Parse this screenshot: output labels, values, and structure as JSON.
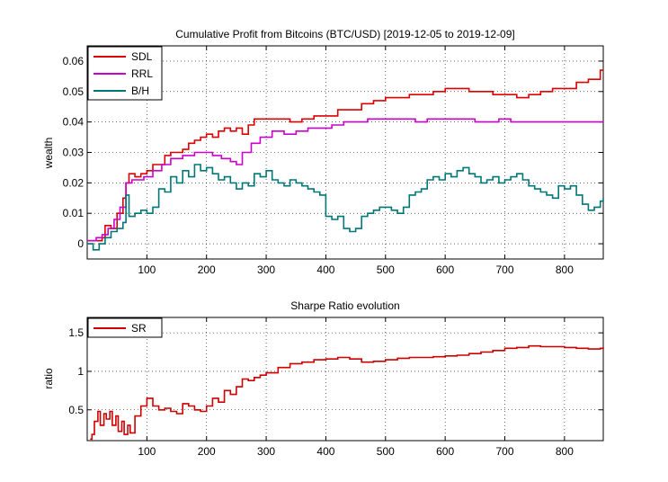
{
  "chart_data": [
    {
      "type": "line",
      "title": "Cumulative Profit from Bitcoins (BTC/USD) [2019-12-05 to 2019-12-09]",
      "xlabel": "",
      "ylabel": "wealth",
      "xlim": [
        0,
        865
      ],
      "ylim": [
        -0.005,
        0.065
      ],
      "xticks": [
        100,
        200,
        300,
        400,
        500,
        600,
        700,
        800
      ],
      "yticks": [
        0,
        0.01,
        0.02,
        0.03,
        0.04,
        0.05,
        0.06
      ],
      "ytick_labels": [
        "0",
        "0.01",
        "0.02",
        "0.03",
        "0.04",
        "0.05",
        "0.06"
      ],
      "grid": true,
      "legend": "top-left",
      "series": [
        {
          "name": "SDL",
          "color": "#dd0000",
          "x": [
            0,
            15,
            25,
            30,
            40,
            50,
            60,
            65,
            70,
            80,
            90,
            100,
            110,
            120,
            130,
            140,
            150,
            160,
            170,
            180,
            190,
            200,
            210,
            220,
            230,
            240,
            250,
            260,
            270,
            280,
            290,
            300,
            320,
            340,
            360,
            380,
            400,
            420,
            440,
            460,
            480,
            500,
            520,
            540,
            560,
            580,
            600,
            620,
            640,
            660,
            680,
            700,
            720,
            740,
            760,
            780,
            800,
            820,
            840,
            860,
            865
          ],
          "y": [
            0.001,
            0.001,
            0.002,
            0.006,
            0.005,
            0.01,
            0.015,
            0.02,
            0.023,
            0.022,
            0.023,
            0.024,
            0.026,
            0.026,
            0.029,
            0.03,
            0.03,
            0.031,
            0.033,
            0.034,
            0.035,
            0.036,
            0.035,
            0.037,
            0.038,
            0.037,
            0.038,
            0.036,
            0.039,
            0.041,
            0.041,
            0.041,
            0.041,
            0.04,
            0.041,
            0.042,
            0.042,
            0.044,
            0.044,
            0.046,
            0.047,
            0.048,
            0.048,
            0.049,
            0.049,
            0.05,
            0.051,
            0.051,
            0.05,
            0.05,
            0.049,
            0.049,
            0.048,
            0.049,
            0.05,
            0.051,
            0.051,
            0.053,
            0.054,
            0.057,
            0.057
          ]
        },
        {
          "name": "RRL",
          "color": "#cc00cc",
          "x": [
            0,
            15,
            25,
            35,
            45,
            55,
            65,
            75,
            85,
            95,
            110,
            125,
            140,
            160,
            180,
            195,
            210,
            225,
            240,
            250,
            260,
            275,
            290,
            310,
            330,
            350,
            370,
            390,
            410,
            430,
            450,
            470,
            490,
            510,
            530,
            550,
            570,
            590,
            610,
            630,
            650,
            670,
            690,
            710,
            730,
            750,
            770,
            790,
            810,
            830,
            850,
            865
          ],
          "y": [
            0.001,
            0.002,
            0.003,
            0.005,
            0.008,
            0.012,
            0.02,
            0.021,
            0.021,
            0.022,
            0.024,
            0.026,
            0.028,
            0.029,
            0.03,
            0.03,
            0.029,
            0.028,
            0.027,
            0.026,
            0.03,
            0.033,
            0.035,
            0.037,
            0.036,
            0.037,
            0.038,
            0.038,
            0.039,
            0.04,
            0.04,
            0.041,
            0.041,
            0.041,
            0.041,
            0.04,
            0.041,
            0.041,
            0.041,
            0.041,
            0.04,
            0.04,
            0.041,
            0.04,
            0.04,
            0.04,
            0.04,
            0.04,
            0.04,
            0.04,
            0.04,
            0.04
          ]
        },
        {
          "name": "B/H",
          "color": "#007777",
          "x": [
            0,
            10,
            20,
            30,
            40,
            50,
            60,
            65,
            70,
            80,
            90,
            100,
            110,
            120,
            130,
            140,
            150,
            160,
            170,
            180,
            190,
            200,
            210,
            220,
            230,
            240,
            250,
            260,
            270,
            280,
            290,
            300,
            310,
            320,
            330,
            340,
            350,
            360,
            370,
            380,
            390,
            400,
            410,
            420,
            430,
            440,
            450,
            460,
            470,
            480,
            490,
            500,
            510,
            520,
            530,
            540,
            550,
            560,
            570,
            580,
            590,
            600,
            610,
            620,
            630,
            640,
            650,
            660,
            670,
            680,
            690,
            700,
            710,
            720,
            730,
            740,
            750,
            760,
            770,
            780,
            790,
            800,
            810,
            820,
            830,
            840,
            850,
            860,
            865
          ],
          "y": [
            0.0,
            -0.002,
            0.0,
            0.002,
            0.004,
            0.005,
            0.007,
            0.016,
            0.009,
            0.01,
            0.011,
            0.01,
            0.012,
            0.018,
            0.017,
            0.022,
            0.02,
            0.024,
            0.022,
            0.026,
            0.024,
            0.025,
            0.023,
            0.021,
            0.022,
            0.02,
            0.018,
            0.02,
            0.019,
            0.023,
            0.022,
            0.024,
            0.021,
            0.02,
            0.019,
            0.021,
            0.02,
            0.019,
            0.018,
            0.017,
            0.016,
            0.009,
            0.008,
            0.009,
            0.005,
            0.004,
            0.005,
            0.009,
            0.01,
            0.011,
            0.012,
            0.012,
            0.011,
            0.01,
            0.012,
            0.016,
            0.017,
            0.018,
            0.021,
            0.022,
            0.021,
            0.023,
            0.022,
            0.024,
            0.025,
            0.023,
            0.022,
            0.02,
            0.021,
            0.022,
            0.02,
            0.021,
            0.022,
            0.023,
            0.021,
            0.019,
            0.018,
            0.017,
            0.016,
            0.015,
            0.019,
            0.018,
            0.019,
            0.016,
            0.013,
            0.011,
            0.012,
            0.014,
            0.015
          ]
        }
      ]
    },
    {
      "type": "line",
      "title": "Sharpe Ratio evolution",
      "xlabel": "",
      "ylabel": "ratio",
      "xlim": [
        0,
        865
      ],
      "ylim": [
        0.1,
        1.7
      ],
      "xticks": [
        100,
        200,
        300,
        400,
        500,
        600,
        700,
        800
      ],
      "yticks": [
        0.5,
        1,
        1.5
      ],
      "ytick_labels": [
        "0.5",
        "1",
        "1.5"
      ],
      "grid": true,
      "legend": "top-left",
      "series": [
        {
          "name": "SR",
          "color": "#cc0000",
          "x": [
            5,
            8,
            12,
            18,
            22,
            28,
            32,
            38,
            42,
            48,
            52,
            58,
            62,
            68,
            72,
            80,
            90,
            100,
            110,
            120,
            130,
            140,
            150,
            160,
            170,
            180,
            190,
            200,
            210,
            220,
            230,
            240,
            250,
            260,
            270,
            280,
            290,
            300,
            320,
            340,
            360,
            380,
            400,
            420,
            440,
            460,
            480,
            500,
            520,
            540,
            560,
            580,
            600,
            620,
            640,
            660,
            680,
            700,
            720,
            740,
            760,
            780,
            800,
            820,
            840,
            860,
            865
          ],
          "y": [
            0.12,
            0.18,
            0.35,
            0.48,
            0.3,
            0.45,
            0.38,
            0.48,
            0.3,
            0.42,
            0.22,
            0.35,
            0.18,
            0.3,
            0.2,
            0.42,
            0.55,
            0.65,
            0.55,
            0.5,
            0.52,
            0.48,
            0.45,
            0.58,
            0.55,
            0.5,
            0.48,
            0.55,
            0.65,
            0.6,
            0.75,
            0.7,
            0.8,
            0.9,
            0.88,
            0.92,
            0.95,
            0.98,
            1.05,
            1.1,
            1.12,
            1.15,
            1.16,
            1.18,
            1.16,
            1.12,
            1.13,
            1.15,
            1.17,
            1.18,
            1.18,
            1.19,
            1.2,
            1.21,
            1.23,
            1.25,
            1.27,
            1.3,
            1.31,
            1.33,
            1.32,
            1.32,
            1.31,
            1.3,
            1.29,
            1.3,
            1.31
          ]
        }
      ]
    }
  ]
}
